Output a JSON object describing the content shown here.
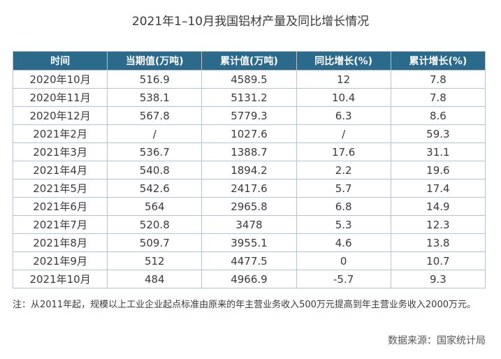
{
  "title": "2021年1–10月我国铝材产量及同比增长情况",
  "table": {
    "headers": [
      "时间",
      "当期值(万吨)",
      "累计值(万吨)",
      "同比增长(%)",
      "累计增长(%)"
    ],
    "rows": [
      [
        "2020年10月",
        "516.9",
        "4589.5",
        "12",
        "7.8"
      ],
      [
        "2020年11月",
        "538.1",
        "5131.2",
        "10.4",
        "7.8"
      ],
      [
        "2020年12月",
        "567.8",
        "5779.3",
        "6.3",
        "8.6"
      ],
      [
        "2021年2月",
        "/",
        "1027.6",
        "/",
        "59.3"
      ],
      [
        "2021年3月",
        "536.7",
        "1388.7",
        "17.6",
        "31.1"
      ],
      [
        "2021年4月",
        "540.8",
        "1894.2",
        "2.2",
        "19.6"
      ],
      [
        "2021年5月",
        "542.6",
        "2417.6",
        "5.7",
        "17.4"
      ],
      [
        "2021年6月",
        "564",
        "2965.8",
        "6.8",
        "14.9"
      ],
      [
        "2021年7月",
        "520.8",
        "3478",
        "5.3",
        "12.3"
      ],
      [
        "2021年8月",
        "509.7",
        "3955.1",
        "4.6",
        "13.8"
      ],
      [
        "2021年9月",
        "512",
        "4477.5",
        "0",
        "10.7"
      ],
      [
        "2021年10月",
        "484",
        "4966.9",
        "-5.7",
        "9.3"
      ]
    ]
  },
  "note": "注：从2011年起，规模以上工业企业起点标准由原来的年主营业务收入500万元提高到年主营业务收入2000万元。",
  "source": "数据来源：国家统计局",
  "colors": {
    "header_bg": "#2b6a8b",
    "header_text": "#ffffff",
    "border": "#b7c2cc"
  }
}
